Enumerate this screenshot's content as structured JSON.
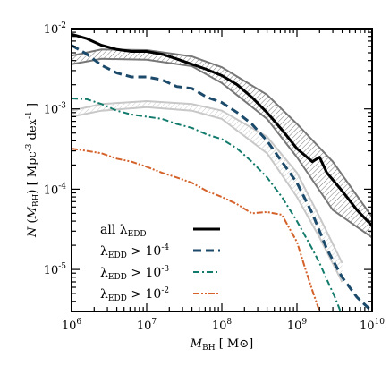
{
  "chart_data": {
    "type": "line",
    "xlabel": {
      "main": "M",
      "sub": "BH",
      "unit": "[ M",
      "sun": "⊙",
      "close": "]"
    },
    "ylabel": {
      "main": "N",
      "open": "(",
      "var": "M",
      "sub": "BH",
      "close": ")",
      "unit": "[  Mpc",
      "exp1": "-3",
      "dex": " dex",
      "exp2": "-1",
      "end": " ]"
    },
    "xscale": "log",
    "yscale": "log",
    "xlim": [
      1000000,
      10000000000
    ],
    "ylim": [
      3e-06,
      0.01
    ],
    "xticks": [
      {
        "value": 1000000,
        "base": "10",
        "exp": "6"
      },
      {
        "value": 10000000,
        "base": "10",
        "exp": "7"
      },
      {
        "value": 100000000,
        "base": "10",
        "exp": "8"
      },
      {
        "value": 1000000000,
        "base": "10",
        "exp": "9"
      },
      {
        "value": 10000000000,
        "base": "10",
        "exp": "10"
      }
    ],
    "yticks": [
      {
        "value": 1e-05,
        "base": "10",
        "exp": "-5"
      },
      {
        "value": 0.0001,
        "base": "10",
        "exp": "-4"
      },
      {
        "value": 0.001,
        "base": "10",
        "exp": "-3"
      },
      {
        "value": 0.01,
        "base": "10",
        "exp": "-2"
      }
    ],
    "legend_position": "bottom-left",
    "series": [
      {
        "id": "all",
        "label_pre": "all λ",
        "label_sub": "EDD",
        "label_post": "",
        "label_exp": "",
        "color": "#000000",
        "dash": "",
        "width": 3,
        "x": [
          1000000,
          1600000,
          2500000,
          4000000,
          6300000,
          10000000,
          16000000,
          25000000,
          40000000,
          63000000,
          100000000,
          160000000,
          250000000,
          400000000,
          630000000,
          1000000000,
          1600000000,
          2000000000,
          2500000000,
          4000000000,
          6300000000,
          10000000000
        ],
        "y": [
          0.0085,
          0.0075,
          0.0062,
          0.0055,
          0.0052,
          0.0052,
          0.0048,
          0.0042,
          0.0036,
          0.0031,
          0.0026,
          0.002,
          0.0014,
          0.0009,
          0.00055,
          0.00032,
          0.00022,
          0.00025,
          0.00016,
          9.5e-05,
          5.5e-05,
          3.5e-05
        ]
      },
      {
        "id": "edd4",
        "label_pre": "λ",
        "label_sub": "EDD",
        "label_post": " > 10",
        "label_exp": "-4",
        "color": "#1c4a6b",
        "dash": "9,5",
        "width": 3,
        "x": [
          1000000,
          1600000,
          2500000,
          4000000,
          6300000,
          10000000,
          16000000,
          25000000,
          40000000,
          63000000,
          100000000,
          160000000,
          250000000,
          400000000,
          630000000,
          1000000000,
          1600000000,
          2500000000,
          4000000000,
          6300000000,
          10000000000
        ],
        "y": [
          0.0062,
          0.0048,
          0.0035,
          0.0028,
          0.0025,
          0.0025,
          0.0023,
          0.0019,
          0.0018,
          0.0014,
          0.0012,
          0.0009,
          0.00065,
          0.0004,
          0.00022,
          0.00012,
          5e-05,
          1.8e-05,
          8e-06,
          4.5e-06,
          3e-06
        ]
      },
      {
        "id": "edd3",
        "label_pre": "λ",
        "label_sub": "EDD",
        "label_post": " > 10",
        "label_exp": "-3",
        "color": "#137b6c",
        "dash": "7,3,2,3",
        "width": 2,
        "x": [
          1000000,
          1600000,
          2500000,
          4000000,
          6300000,
          10000000,
          16000000,
          25000000,
          40000000,
          63000000,
          100000000,
          160000000,
          250000000,
          400000000,
          630000000,
          1000000000,
          1600000000,
          2000000000,
          2500000000,
          3200000000,
          3800000000
        ],
        "y": [
          0.00135,
          0.00132,
          0.00115,
          0.00095,
          0.00085,
          0.0008,
          0.00075,
          0.00065,
          0.00058,
          0.00048,
          0.00042,
          0.00032,
          0.00022,
          0.00014,
          8e-05,
          4e-05,
          1.8e-05,
          1.2e-05,
          7.5e-06,
          4.5e-06,
          3e-06
        ]
      },
      {
        "id": "edd2",
        "label_pre": "λ",
        "label_sub": "EDD",
        "label_post": " > 10",
        "label_exp": "-2",
        "color": "#d4622a",
        "dash": "7,2,2,2,2,2",
        "width": 2,
        "x": [
          1000000,
          1600000,
          2500000,
          4000000,
          6300000,
          10000000,
          16000000,
          25000000,
          40000000,
          63000000,
          100000000,
          160000000,
          250000000,
          400000000,
          630000000,
          1000000000,
          1300000000,
          1600000000,
          2000000000
        ],
        "y": [
          0.00032,
          0.0003,
          0.00028,
          0.00024,
          0.00022,
          0.00019,
          0.00016,
          0.00014,
          0.00012,
          9.5e-05,
          8e-05,
          6.5e-05,
          5e-05,
          5.2e-05,
          4.8e-05,
          2.2e-05,
          1e-05,
          5.5e-06,
          3e-06
        ]
      }
    ],
    "bands": [
      {
        "id": "upper-hatched-band",
        "color": "#777777",
        "x": [
          1000000,
          2500000,
          10000000,
          40000000,
          100000000,
          400000000,
          1000000000,
          3000000000,
          10000000000
        ],
        "upper": [
          0.0046,
          0.0055,
          0.0054,
          0.0045,
          0.0033,
          0.0015,
          0.00065,
          0.00022,
          4.5e-05
        ],
        "lower": [
          0.0036,
          0.0042,
          0.0041,
          0.0034,
          0.0021,
          0.00075,
          0.00025,
          5.5e-05,
          2.5e-05
        ]
      },
      {
        "id": "lower-gray-band",
        "color": "#c8c8c8",
        "x": [
          1000000,
          2500000,
          10000000,
          40000000,
          100000000,
          400000000,
          1000000000,
          2000000000,
          4000000000
        ],
        "upper": [
          0.00095,
          0.00115,
          0.00125,
          0.00115,
          0.00095,
          0.00045,
          0.00016,
          4.5e-05,
          1.2e-05
        ],
        "lower": [
          0.0008,
          0.00095,
          0.00105,
          0.00095,
          0.00075,
          0.00028,
          8e-05,
          2.5e-05,
          7e-06
        ]
      }
    ]
  }
}
